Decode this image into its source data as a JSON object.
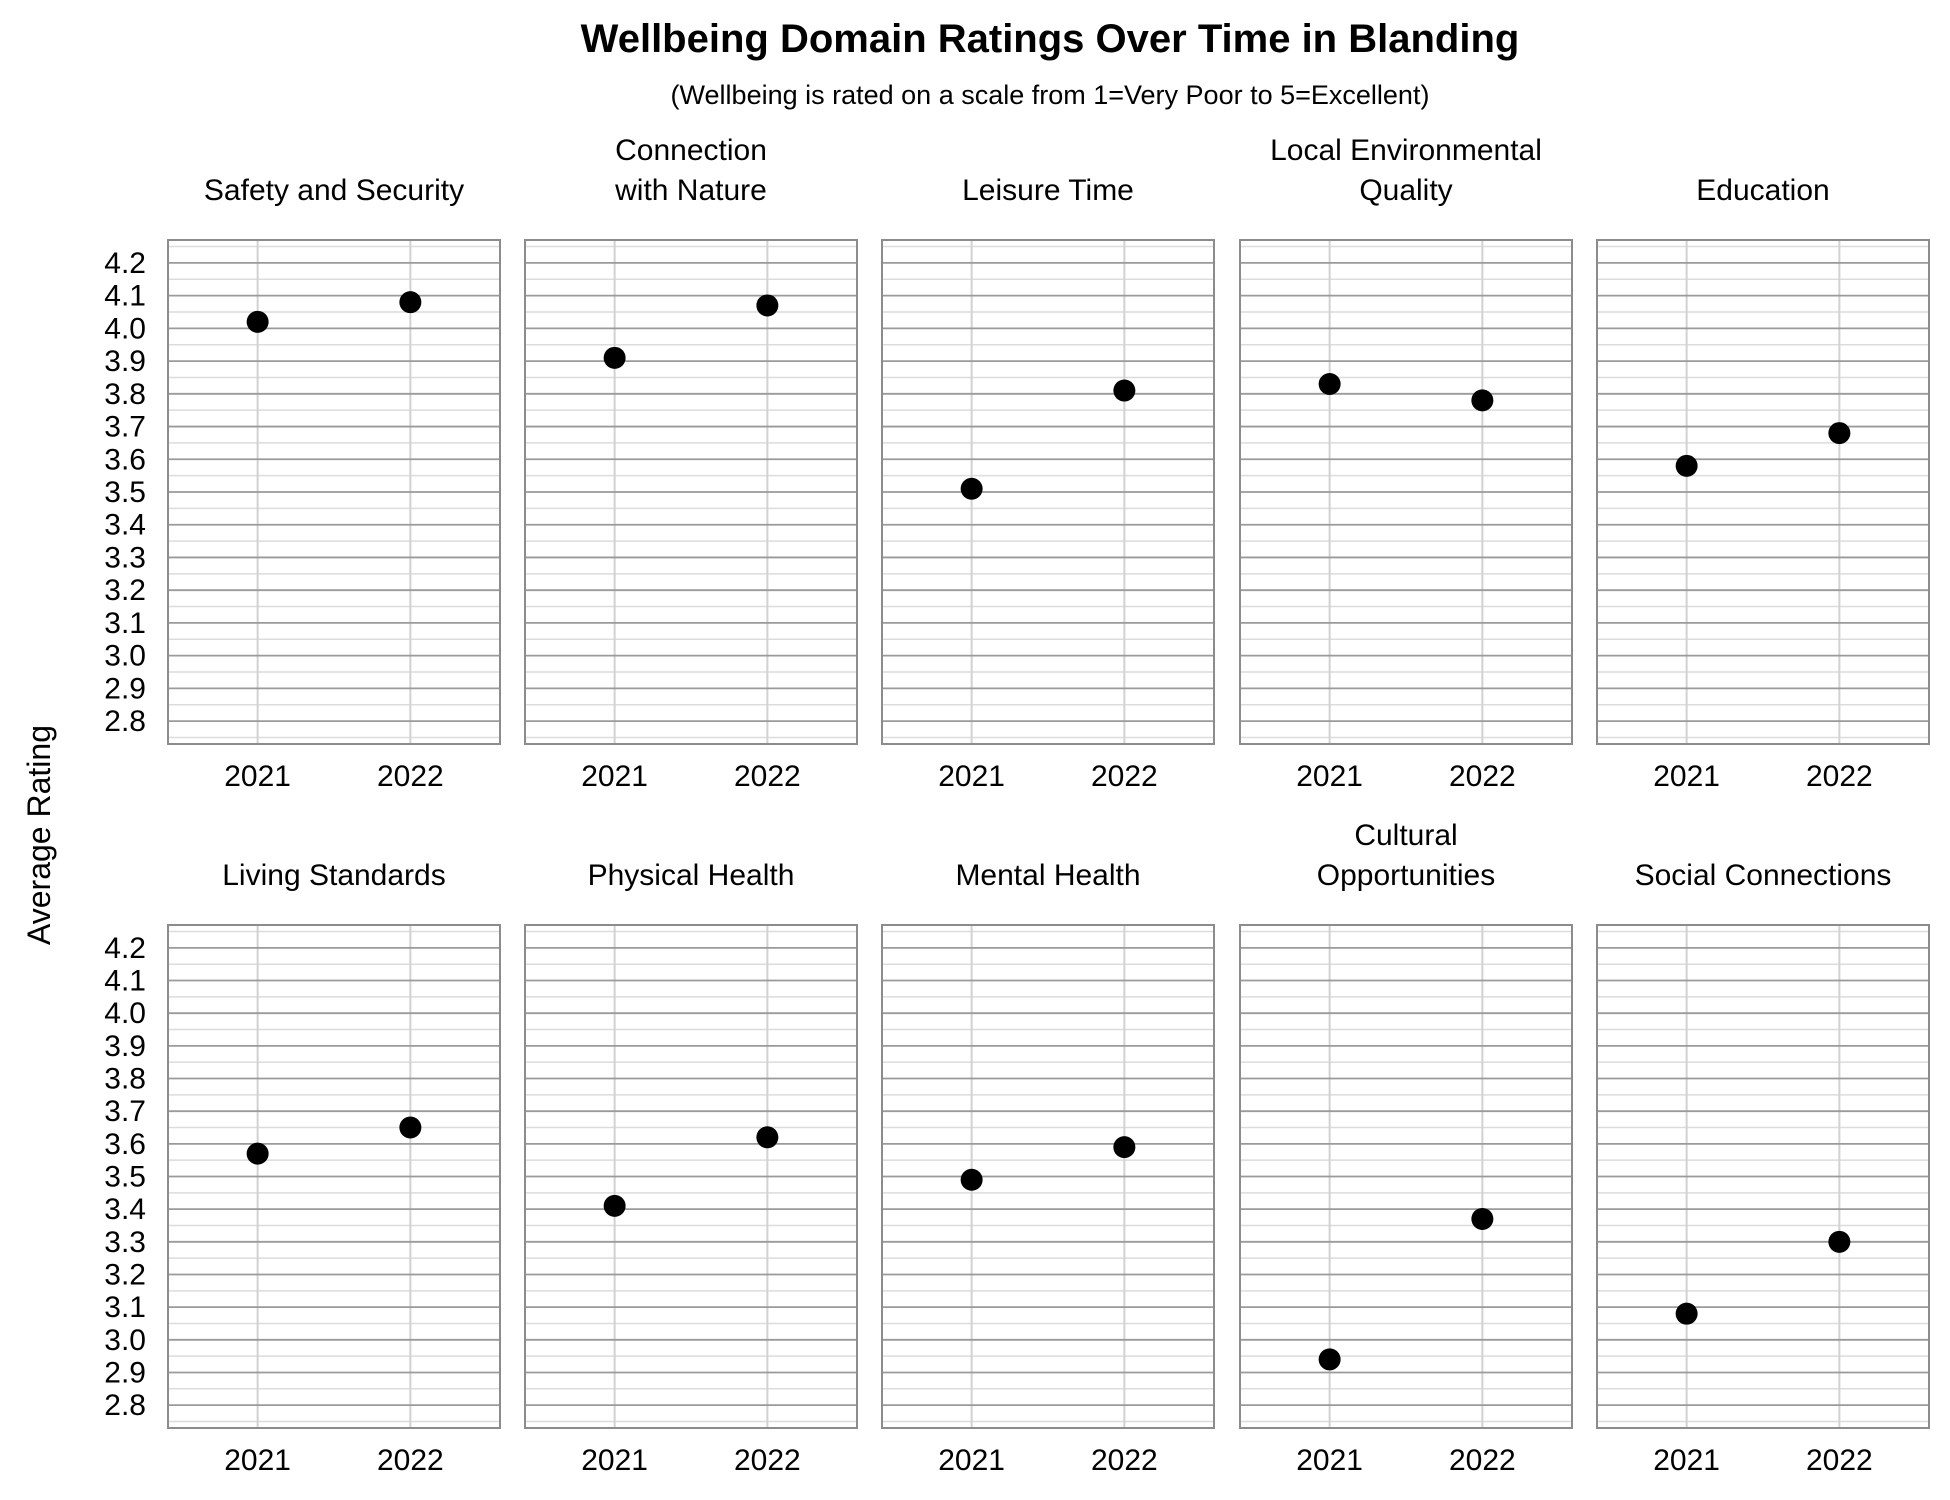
{
  "chart_data": {
    "type": "scatter",
    "title": "Wellbeing Domain Ratings Over Time in Blanding",
    "subtitle": "(Wellbeing is rated on a scale from 1=Very Poor to 5=Excellent)",
    "ylabel": "Average Rating",
    "xlabel": "",
    "categories": [
      "2021",
      "2022"
    ],
    "ylim": [
      2.73,
      4.27
    ],
    "yticks": [
      "2.8",
      "2.9",
      "3.0",
      "3.1",
      "3.2",
      "3.3",
      "3.4",
      "3.5",
      "3.6",
      "3.7",
      "3.8",
      "3.9",
      "4.0",
      "4.1",
      "4.2"
    ],
    "grid": true,
    "marker_color": "#000000",
    "panels": [
      {
        "title_lines": [
          "Safety and Security"
        ],
        "values": [
          4.02,
          4.08
        ]
      },
      {
        "title_lines": [
          "Connection",
          "with Nature"
        ],
        "values": [
          3.91,
          4.07
        ]
      },
      {
        "title_lines": [
          "Leisure Time"
        ],
        "values": [
          3.51,
          3.81
        ]
      },
      {
        "title_lines": [
          "Local Environmental",
          "Quality"
        ],
        "values": [
          3.83,
          3.78
        ]
      },
      {
        "title_lines": [
          "Education"
        ],
        "values": [
          3.58,
          3.68
        ]
      },
      {
        "title_lines": [
          "Living Standards"
        ],
        "values": [
          3.57,
          3.65
        ]
      },
      {
        "title_lines": [
          "Physical Health"
        ],
        "values": [
          3.41,
          3.62
        ]
      },
      {
        "title_lines": [
          "Mental Health"
        ],
        "values": [
          3.49,
          3.59
        ]
      },
      {
        "title_lines": [
          "Cultural",
          "Opportunities"
        ],
        "values": [
          2.94,
          3.37
        ]
      },
      {
        "title_lines": [
          "Social Connections"
        ],
        "values": [
          3.08,
          3.3
        ]
      }
    ]
  }
}
